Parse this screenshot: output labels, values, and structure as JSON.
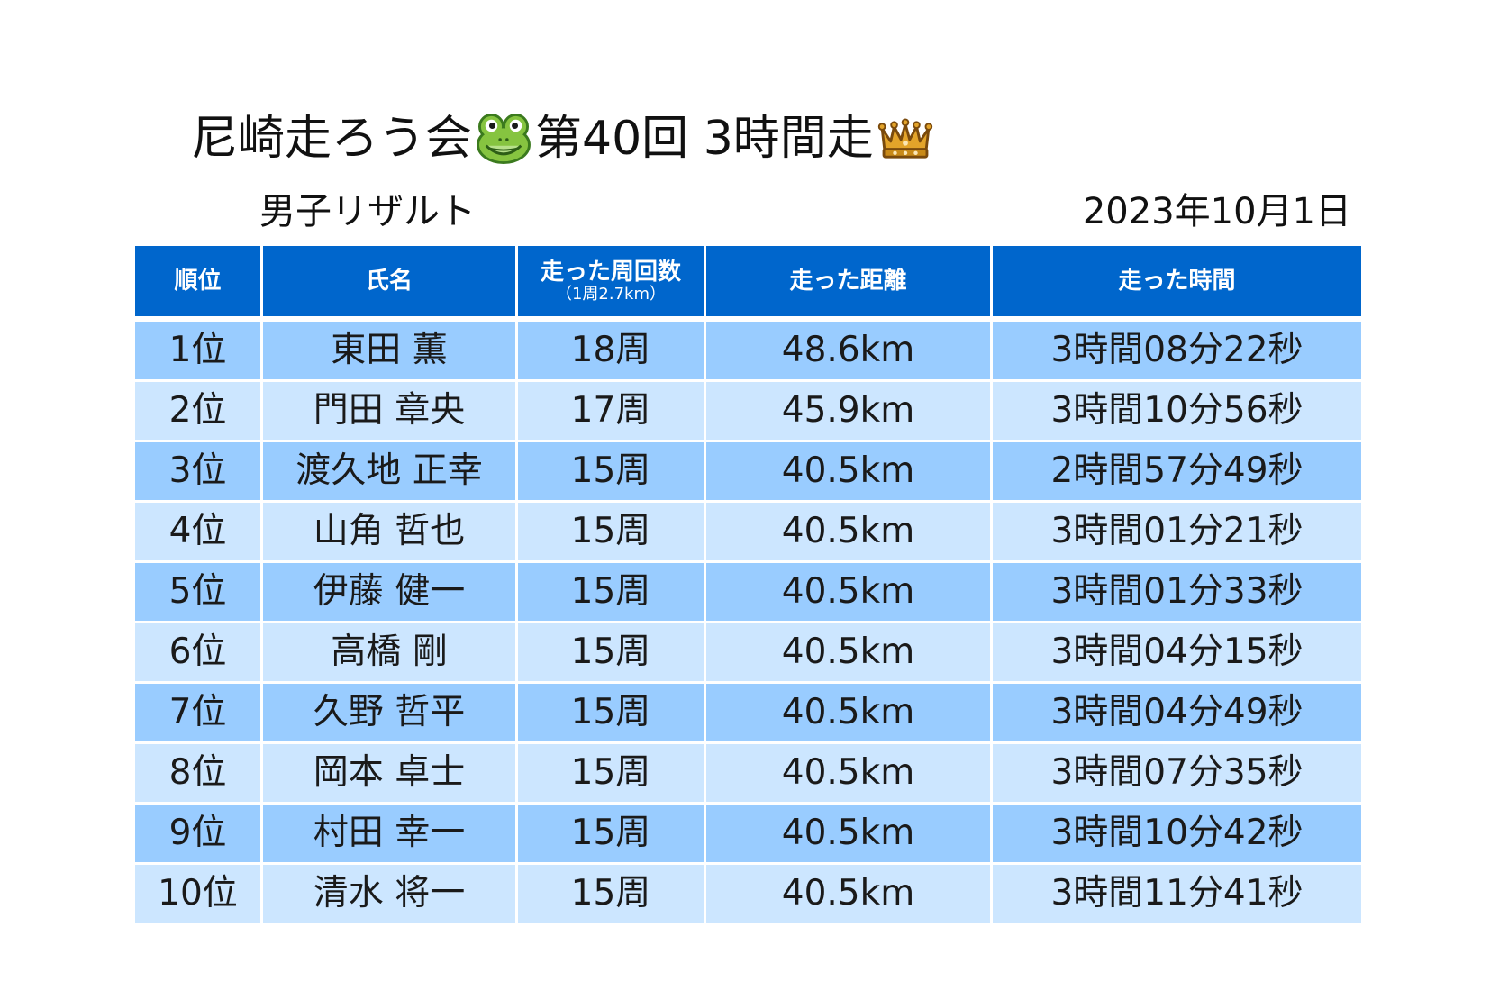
{
  "title": {
    "prefix": "尼崎走ろう会",
    "suffix": "第40回 3時間走",
    "icons": [
      "frog-face-icon",
      "crown-icon"
    ]
  },
  "subtitle": "男子リザルト",
  "date": "2023年10月1日",
  "colors": {
    "header_background": "#0066cc",
    "header_text": "#ffffff",
    "row_odd": "#99ccff",
    "row_even": "#cce6ff",
    "text": "#1a1a1a"
  },
  "table": {
    "headers": {
      "rank": "順位",
      "name": "氏名",
      "laps": "走った周回数",
      "laps_note": "（1周2.7km）",
      "distance": "走った距離",
      "time": "走った時間"
    },
    "rows": [
      {
        "rank": "1位",
        "name": "東田 薫",
        "laps": "18周",
        "distance": "48.6km",
        "time": "3時間08分22秒"
      },
      {
        "rank": "2位",
        "name": "門田 章央",
        "laps": "17周",
        "distance": "45.9km",
        "time": "3時間10分56秒"
      },
      {
        "rank": "3位",
        "name": "渡久地 正幸",
        "laps": "15周",
        "distance": "40.5km",
        "time": "2時間57分49秒"
      },
      {
        "rank": "4位",
        "name": "山角 哲也",
        "laps": "15周",
        "distance": "40.5km",
        "time": "3時間01分21秒"
      },
      {
        "rank": "5位",
        "name": "伊藤 健一",
        "laps": "15周",
        "distance": "40.5km",
        "time": "3時間01分33秒"
      },
      {
        "rank": "6位",
        "name": "高橋 剛",
        "laps": "15周",
        "distance": "40.5km",
        "time": "3時間04分15秒"
      },
      {
        "rank": "7位",
        "name": "久野 哲平",
        "laps": "15周",
        "distance": "40.5km",
        "time": "3時間04分49秒"
      },
      {
        "rank": "8位",
        "name": "岡本 卓士",
        "laps": "15周",
        "distance": "40.5km",
        "time": "3時間07分35秒"
      },
      {
        "rank": "9位",
        "name": "村田 幸一",
        "laps": "15周",
        "distance": "40.5km",
        "time": "3時間10分42秒"
      },
      {
        "rank": "10位",
        "name": "清水 将一",
        "laps": "15周",
        "distance": "40.5km",
        "time": "3時間11分41秒"
      }
    ]
  }
}
